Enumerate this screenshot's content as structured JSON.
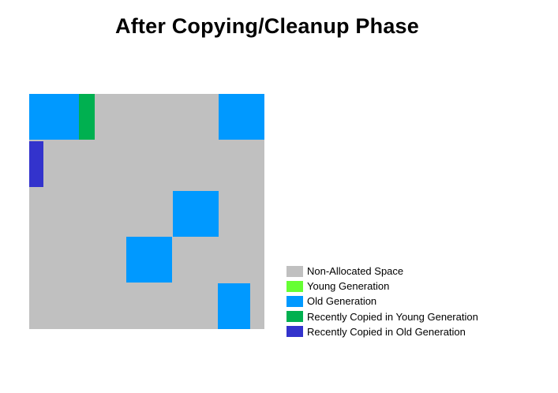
{
  "title": "After Copying/Cleanup Phase",
  "colors": {
    "non_allocated": "#c0c0c0",
    "young": "#66ff33",
    "old": "#0099ff",
    "recent_young": "#00b050",
    "recent_old": "#3333cc"
  },
  "legend": [
    {
      "label": "Non-Allocated Space",
      "color": "#c0c0c0"
    },
    {
      "label": "Young Generation",
      "color": "#66ff33"
    },
    {
      "label": "Old Generation",
      "color": "#0099ff"
    },
    {
      "label": "Recently Copied in Young Generation",
      "color": "#00b050"
    },
    {
      "label": "Recently Copied in Old Generation",
      "color": "#3333cc"
    }
  ]
}
